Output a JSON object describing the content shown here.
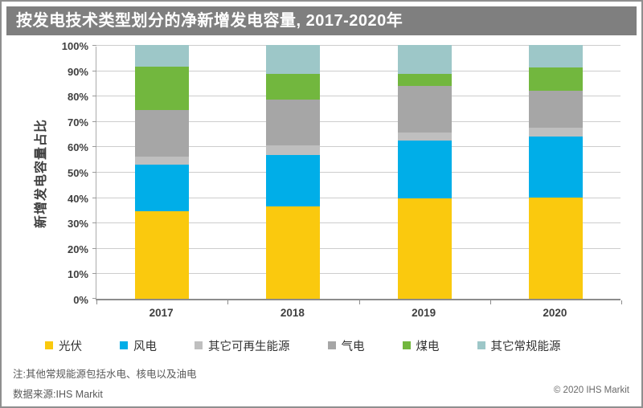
{
  "title": "按发电技术类型划分的净新增发电容量, 2017-2020年",
  "chart_data": {
    "type": "bar",
    "stacked": true,
    "categories": [
      "2017",
      "2018",
      "2019",
      "2020"
    ],
    "series": [
      {
        "name": "光伏",
        "color": "#FAC90E",
        "values": [
          34.5,
          36.5,
          39.5,
          40.0
        ]
      },
      {
        "name": "风电",
        "color": "#00AEE8",
        "values": [
          18.5,
          20.0,
          23.0,
          24.0
        ]
      },
      {
        "name": "其它可再生能源",
        "color": "#BFBFBF",
        "values": [
          3.0,
          4.0,
          3.0,
          3.5
        ]
      },
      {
        "name": "气电",
        "color": "#A6A6A6",
        "values": [
          18.5,
          18.0,
          18.5,
          14.5
        ]
      },
      {
        "name": "煤电",
        "color": "#72B73E",
        "values": [
          17.0,
          10.0,
          4.5,
          9.0
        ]
      },
      {
        "name": "其它常规能源",
        "color": "#9DC7C8",
        "values": [
          8.5,
          11.5,
          11.5,
          9.0
        ]
      }
    ],
    "ylabel": "新增发电容量占比",
    "xlabel": "",
    "ylim": [
      0,
      100
    ],
    "ytick_step": 10,
    "ytick_suffix": "%",
    "grid": true,
    "legend_position": "bottom"
  },
  "note": "注:其他常规能源包括水电、核电以及油电",
  "source": "数据来源:IHS Markit",
  "copyright": "© 2020 IHS Markit",
  "colors": {
    "title_bar_bg": "#7f7f7f",
    "title_text": "#ffffff",
    "gridline": "#cdcdcd",
    "axis": "#8c8c8c",
    "tick_text": "#3f3f3f"
  }
}
